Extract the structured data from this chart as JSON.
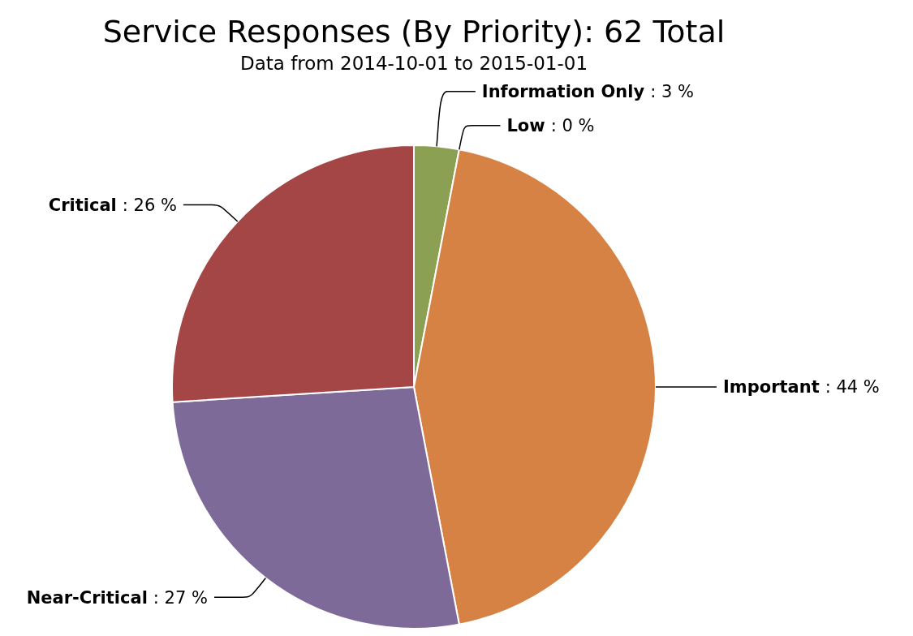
{
  "chart_data": {
    "type": "pie",
    "title": "Service Responses (By Priority): 62 Total",
    "subtitle": "Data from 2014-10-01 to 2015-01-01",
    "categories": [
      "Information Only",
      "Low",
      "Important",
      "Near-Critical",
      "Critical"
    ],
    "values": [
      3,
      0,
      44,
      27,
      26
    ],
    "value_labels": [
      ": 3 %",
      ": 0 %",
      ": 44 %",
      ": 27 %",
      ": 26 %"
    ],
    "colors": [
      "#8ba052",
      null,
      "#d68244",
      "#7e6a99",
      "#a44646"
    ]
  }
}
